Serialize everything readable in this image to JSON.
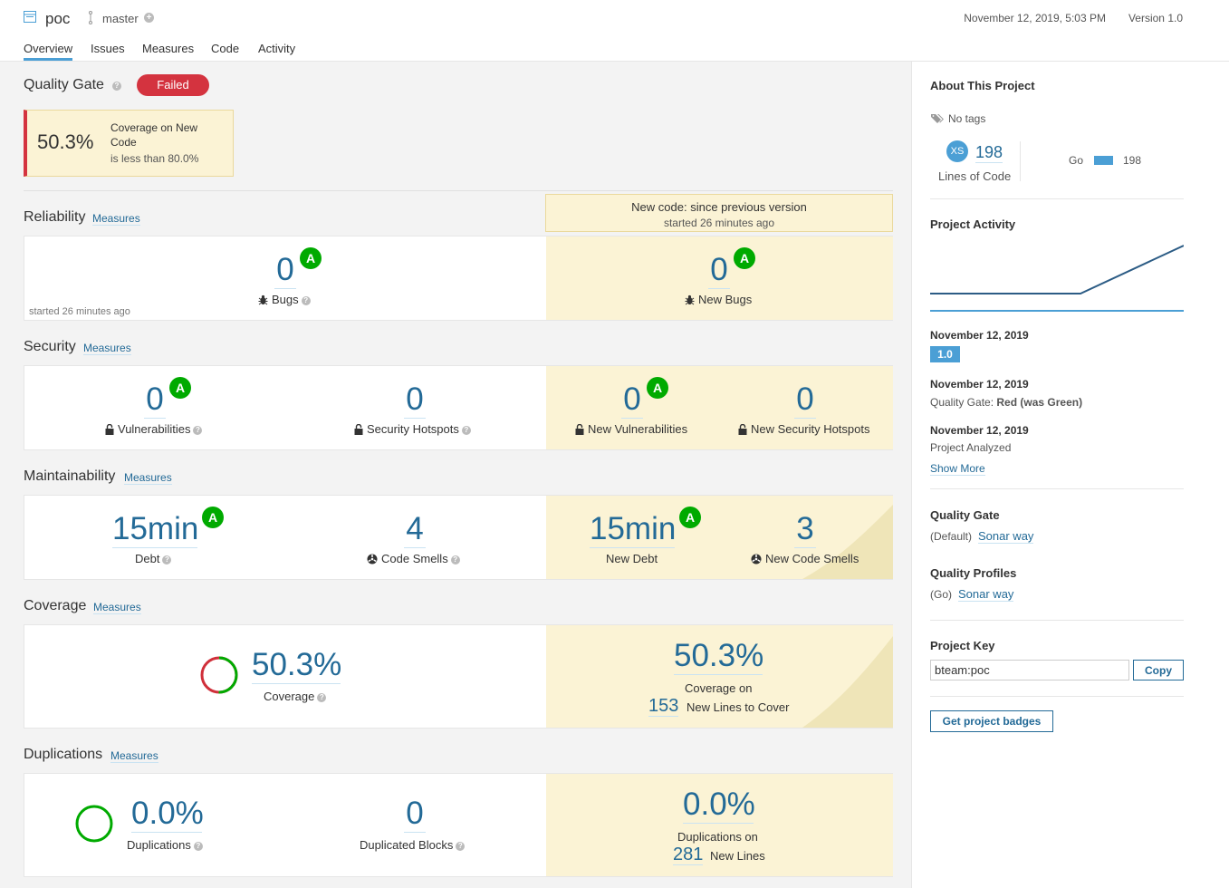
{
  "header": {
    "project_name": "poc",
    "branch": "master",
    "date": "November 12, 2019, 5:03 PM",
    "version": "Version 1.0",
    "tabs": [
      "Overview",
      "Issues",
      "Measures",
      "Code",
      "Activity"
    ]
  },
  "quality_gate": {
    "title": "Quality Gate",
    "status": "Failed",
    "condition_value": "50.3%",
    "condition_metric": "Coverage on New Code",
    "condition_text": "is less than 80.0%"
  },
  "new_code": {
    "title": "New code: since previous version",
    "subtitle": "started 26 minutes ago"
  },
  "measures_label": "Measures",
  "reliability": {
    "title": "Reliability",
    "started": "started 26 minutes ago",
    "bugs": "0",
    "bugs_rating": "A",
    "bugs_label": "Bugs",
    "new_bugs": "0",
    "new_bugs_rating": "A",
    "new_bugs_label": "New Bugs"
  },
  "security": {
    "title": "Security",
    "vulns": "0",
    "vulns_rating": "A",
    "vulns_label": "Vulnerabilities",
    "hotspots": "0",
    "hotspots_label": "Security Hotspots",
    "new_vulns": "0",
    "new_vulns_rating": "A",
    "new_vulns_label": "New Vulnerabilities",
    "new_hotspots": "0",
    "new_hotspots_label": "New Security Hotspots"
  },
  "maintainability": {
    "title": "Maintainability",
    "debt": "15min",
    "debt_rating": "A",
    "debt_label": "Debt",
    "smells": "4",
    "smells_label": "Code Smells",
    "new_debt": "15min",
    "new_debt_rating": "A",
    "new_debt_label": "New Debt",
    "new_smells": "3",
    "new_smells_label": "New Code Smells"
  },
  "coverage": {
    "title": "Coverage",
    "value": "50.3%",
    "label": "Coverage",
    "new_value": "50.3%",
    "new_label": "Coverage on",
    "new_lines": "153",
    "new_lines_label": "New Lines to Cover",
    "donut_fraction": 0.503
  },
  "duplications": {
    "title": "Duplications",
    "value": "0.0%",
    "label": "Duplications",
    "blocks": "0",
    "blocks_label": "Duplicated Blocks",
    "new_value": "0.0%",
    "new_label": "Duplications on",
    "new_lines": "281",
    "new_lines_label": "New Lines"
  },
  "sidebar": {
    "about_title": "About This Project",
    "tags": "No tags",
    "size_badge": "XS",
    "loc": "198",
    "loc_label": "Lines of Code",
    "lang": "Go",
    "lang_loc": "198",
    "activity_title": "Project Activity",
    "events": [
      {
        "date": "November 12, 2019",
        "badge": "1.0"
      },
      {
        "date": "November 12, 2019",
        "text_prefix": "Quality Gate:",
        "text_strong": "Red (was Green)"
      },
      {
        "date": "November 12, 2019",
        "text": "Project Analyzed"
      }
    ],
    "show_more": "Show More",
    "qg_title": "Quality Gate",
    "qg_default": "(Default)",
    "qg_name": "Sonar way",
    "qp_title": "Quality Profiles",
    "qp_lang": "(Go)",
    "qp_name": "Sonar way",
    "key_title": "Project Key",
    "key_value": "bteam:poc",
    "copy_label": "Copy",
    "badges_label": "Get project badges"
  },
  "colors": {
    "accent": "#236a97",
    "new_code_bg": "#fbf3d5",
    "rating_a": "#00aa00",
    "failed": "#d4333f"
  }
}
